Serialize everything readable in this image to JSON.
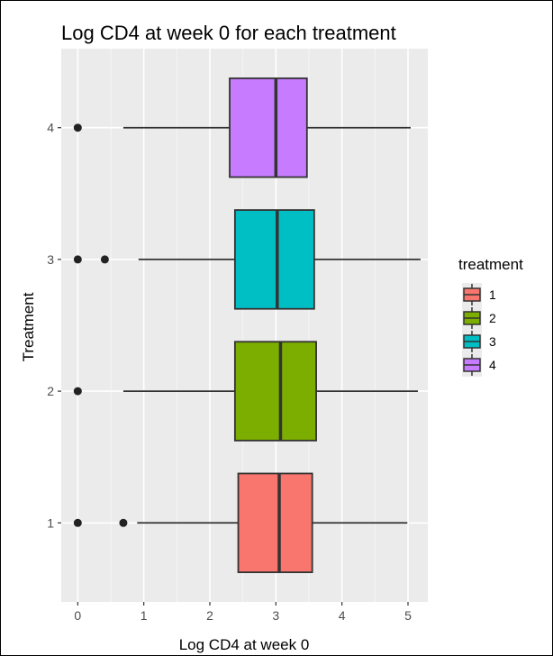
{
  "chart_data": {
    "type": "boxplot",
    "orientation": "horizontal",
    "title": "Log CD4 at week 0 for each treatment",
    "xlabel": "Log CD4 at week 0",
    "ylabel": "Treatment",
    "xlim": [
      -0.25,
      5.3
    ],
    "x_ticks": [
      0,
      1,
      2,
      3,
      4,
      5
    ],
    "categories": [
      "1",
      "2",
      "3",
      "4"
    ],
    "legend": {
      "title": "treatment",
      "position": "right",
      "entries": [
        "1",
        "2",
        "3",
        "4"
      ]
    },
    "grid": true,
    "series": [
      {
        "group": "1",
        "color": "#F8766D",
        "whisker_low": 0.9,
        "q1": 2.43,
        "median": 3.05,
        "q3": 3.55,
        "whisker_high": 4.99,
        "outliers": [
          0,
          0.69
        ]
      },
      {
        "group": "2",
        "color": "#7CAE00",
        "whisker_low": 0.69,
        "q1": 2.38,
        "median": 3.07,
        "q3": 3.61,
        "whisker_high": 5.15,
        "outliers": [
          0
        ]
      },
      {
        "group": "3",
        "color": "#00BFC4",
        "whisker_low": 0.92,
        "q1": 2.38,
        "median": 3.02,
        "q3": 3.58,
        "whisker_high": 5.19,
        "outliers": [
          0,
          0.41
        ]
      },
      {
        "group": "4",
        "color": "#C77CFF",
        "whisker_low": 0.69,
        "q1": 2.3,
        "median": 3.0,
        "q3": 3.47,
        "whisker_high": 5.04,
        "outliers": [
          0
        ]
      }
    ]
  }
}
